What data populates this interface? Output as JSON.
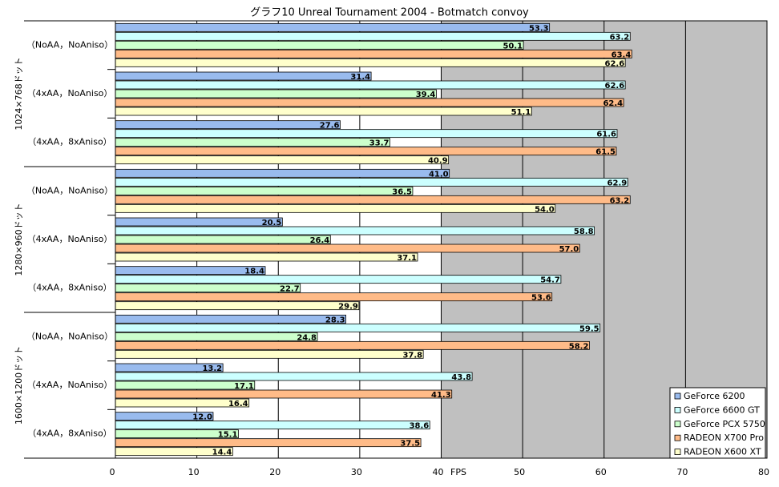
{
  "chart_data": {
    "type": "bar",
    "orientation": "horizontal",
    "title": "グラフ10  Unreal Tournament 2004 - Botmatch convoy",
    "x_label": "FPS",
    "categories": [
      "（NoAA，NoAniso）",
      "（4xAA，NoAniso）",
      "（4xAA，8xAniso）",
      "（NoAA，NoAniso）",
      "（4xAA，NoAniso）",
      "（4xAA，8xAniso）",
      "（NoAA，NoAniso）",
      "（4xAA，NoAniso）",
      "（4xAA，8xAniso）"
    ],
    "category_groups": [
      "1024×768ドット",
      "1280×960ドット",
      "1600×1200ドット"
    ],
    "series": [
      {
        "name": "GeForce 6200",
        "color": "#99bbee",
        "values": [
          53.3,
          31.4,
          27.6,
          41.0,
          20.5,
          18.4,
          28.3,
          13.2,
          12.0
        ],
        "value_labels": [
          "53.3",
          "31.4",
          "27.6",
          "41.0",
          "20.5",
          "18.4",
          "28.3",
          "13.2",
          "12.0"
        ]
      },
      {
        "name": "GeForce 6600 GT",
        "color": "#ccffff",
        "values": [
          63.2,
          62.6,
          61.6,
          62.9,
          58.8,
          54.7,
          59.5,
          43.8,
          38.6
        ],
        "value_labels": [
          "63.2",
          "62.6",
          "61.6",
          "62.9",
          "58.8",
          "54.7",
          "59.5",
          "43.8",
          "38.6"
        ]
      },
      {
        "name": "GeForce PCX 5750",
        "color": "#ccffcc",
        "values": [
          50.1,
          39.4,
          33.7,
          36.5,
          26.4,
          22.7,
          24.8,
          17.1,
          15.1
        ],
        "value_labels": [
          "50.1",
          "39.4",
          "33.7",
          "36.5",
          "26.4",
          "22.7",
          "24.8",
          "17.1",
          "15.1"
        ]
      },
      {
        "name": "RADEON X700 Pro",
        "color": "#ffbb88",
        "values": [
          63.4,
          62.4,
          61.5,
          63.2,
          57.0,
          53.6,
          58.2,
          41.3,
          37.5
        ],
        "value_labels": [
          "63.4",
          "62.4",
          "61.5",
          "63.2",
          "57.0",
          "53.6",
          "58.2",
          "41.3",
          "37.5"
        ]
      },
      {
        "name": "RADEON X600 XT",
        "color": "#ffffcc",
        "values": [
          62.6,
          51.1,
          40.9,
          54.0,
          37.1,
          29.9,
          37.8,
          16.4,
          14.4
        ],
        "value_labels": [
          "62.6",
          "51.1",
          "40.9",
          "54.0",
          "37.1",
          "29.9",
          "37.8",
          "16.4",
          "14.4"
        ]
      }
    ],
    "xlim": [
      0,
      80
    ],
    "xticks": [
      0,
      10,
      20,
      30,
      40,
      50,
      60,
      70,
      80
    ],
    "grid": true,
    "legend": "bottom-right"
  }
}
